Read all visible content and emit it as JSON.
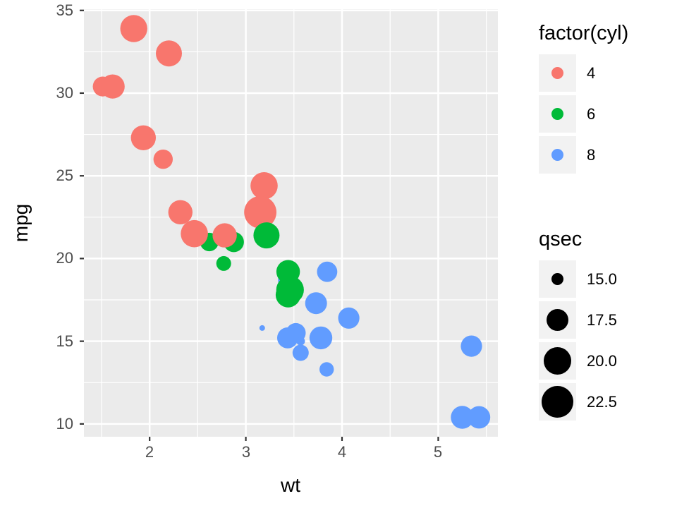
{
  "figure": {
    "background": "#FFFFFF",
    "panel_background": "#EBEBEB",
    "grid_color": "#FFFFFF",
    "tick_mark_color": "#333333",
    "tick_label_color": "#4D4D4D",
    "axis_title_color": "#000000",
    "legend_key_background": "#F2F2F2"
  },
  "chart_data": {
    "type": "scatter",
    "title": "",
    "xlabel": "wt",
    "ylabel": "mpg",
    "xlim": [
      1.317,
      5.62
    ],
    "ylim": [
      9.225,
      35.075
    ],
    "x_ticks": [
      2,
      3,
      4,
      5
    ],
    "y_ticks": [
      10,
      15,
      20,
      25,
      30,
      35
    ],
    "x_minor_ticks": [
      1.5,
      2.5,
      3.5,
      4.5,
      5.5
    ],
    "y_minor_ticks": [
      12.5,
      17.5,
      22.5,
      27.5,
      32.5
    ],
    "grid": true,
    "legend_position": "right",
    "color_legend": {
      "title": "factor(cyl)",
      "entries": [
        {
          "label": "4",
          "color": "#F8766D"
        },
        {
          "label": "6",
          "color": "#00BA38"
        },
        {
          "label": "8",
          "color": "#619CFF"
        }
      ]
    },
    "size_legend": {
      "title": "qsec",
      "breaks": [
        15.0,
        17.5,
        20.0,
        22.5
      ],
      "labels": [
        "15.0",
        "17.5",
        "20.0",
        "22.5"
      ],
      "domain": [
        14.5,
        22.9
      ],
      "dot_color": "#000000"
    },
    "points_columns": [
      "wt",
      "mpg",
      "cyl",
      "qsec"
    ],
    "points": [
      [
        2.62,
        21.0,
        6,
        16.46
      ],
      [
        2.875,
        21.0,
        6,
        17.02
      ],
      [
        2.32,
        22.8,
        4,
        18.61
      ],
      [
        3.44,
        18.7,
        8,
        17.02
      ],
      [
        3.46,
        18.1,
        6,
        20.22
      ],
      [
        3.57,
        14.3,
        8,
        15.84
      ],
      [
        3.19,
        24.4,
        4,
        20.0
      ],
      [
        3.15,
        22.8,
        4,
        22.9
      ],
      [
        3.215,
        21.4,
        6,
        19.44
      ],
      [
        3.44,
        19.2,
        6,
        18.3
      ],
      [
        3.44,
        17.8,
        6,
        18.9
      ],
      [
        4.07,
        16.4,
        8,
        17.4
      ],
      [
        3.73,
        17.3,
        8,
        17.6
      ],
      [
        3.78,
        15.2,
        8,
        18.0
      ],
      [
        5.25,
        10.4,
        8,
        17.98
      ],
      [
        5.424,
        10.4,
        8,
        17.82
      ],
      [
        5.345,
        14.7,
        8,
        17.42
      ],
      [
        2.2,
        32.4,
        4,
        19.47
      ],
      [
        1.615,
        30.4,
        4,
        18.52
      ],
      [
        1.835,
        33.9,
        4,
        19.9
      ],
      [
        2.465,
        21.5,
        4,
        20.01
      ],
      [
        3.52,
        15.5,
        8,
        16.87
      ],
      [
        3.435,
        15.2,
        8,
        17.3
      ],
      [
        3.84,
        13.3,
        8,
        15.41
      ],
      [
        3.845,
        19.2,
        8,
        17.05
      ],
      [
        1.935,
        27.3,
        4,
        18.9
      ],
      [
        2.14,
        26.0,
        4,
        16.7
      ],
      [
        1.513,
        30.4,
        4,
        16.9
      ],
      [
        3.17,
        15.8,
        8,
        14.5
      ],
      [
        2.77,
        19.7,
        6,
        15.5
      ],
      [
        3.57,
        15.0,
        8,
        14.6
      ],
      [
        2.78,
        21.4,
        4,
        18.6
      ]
    ]
  }
}
